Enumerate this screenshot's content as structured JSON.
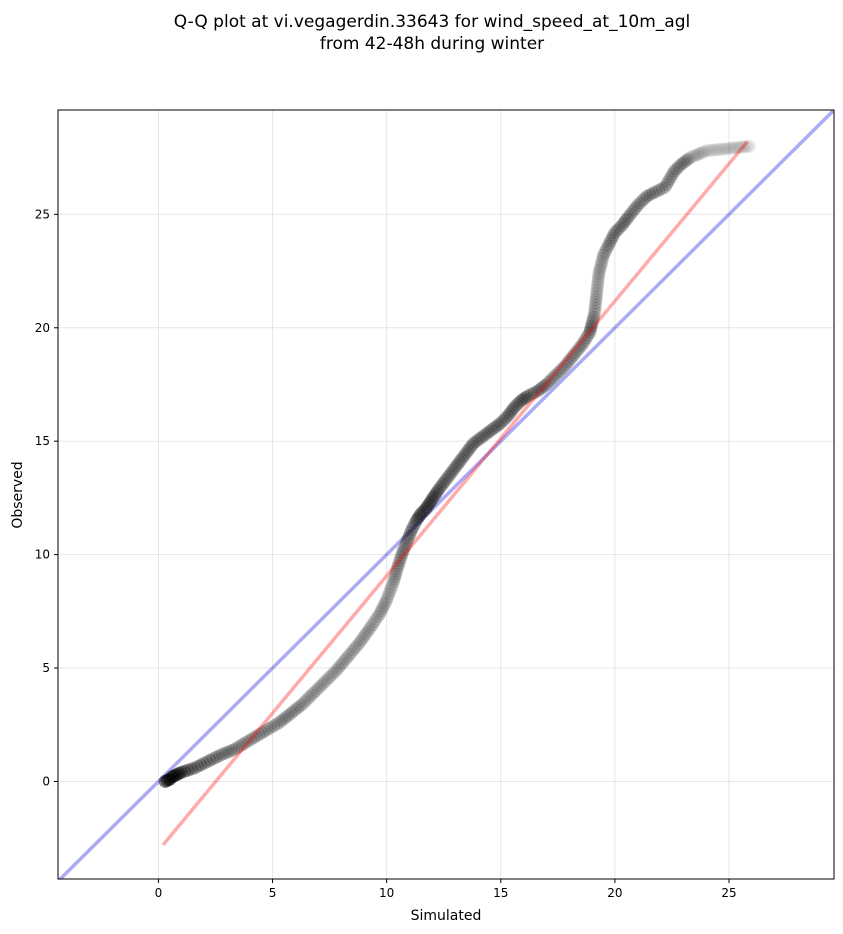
{
  "chart_data": {
    "type": "scatter",
    "title_lines": [
      "Q-Q plot at vi.vegagerdin.33643 for wind_speed_at_10m_agl",
      "from 42-48h during winter"
    ],
    "xlabel": "Simulated",
    "ylabel": "Observed",
    "xlim": [
      -4.4,
      29.6
    ],
    "ylim": [
      -4.3,
      29.6
    ],
    "xticks": [
      0,
      5,
      10,
      15,
      20,
      25
    ],
    "yticks": [
      0,
      5,
      10,
      15,
      20,
      25
    ],
    "grid": true,
    "point_color": "#000000",
    "identity_line": {
      "color": "#0000e0",
      "opacity": 0.33,
      "x": [
        -4.4,
        29.6
      ],
      "y": [
        -4.4,
        29.6
      ]
    },
    "fit_line": {
      "color": "#ff0000",
      "opacity": 0.33,
      "x": [
        0.2,
        25.8
      ],
      "y": [
        -2.8,
        28.2
      ]
    },
    "quantiles": {
      "x": [
        0.3,
        0.5,
        0.6,
        0.8,
        1.0,
        1.3,
        1.6,
        2.0,
        2.4,
        2.8,
        3.3,
        3.8,
        4.3,
        4.8,
        5.3,
        5.8,
        6.3,
        6.8,
        7.3,
        7.8,
        8.3,
        8.8,
        9.3,
        9.7,
        10.0,
        10.3,
        10.5,
        10.7,
        10.9,
        11.1,
        11.3,
        11.5,
        11.7,
        11.9,
        12.1,
        12.3,
        12.6,
        12.9,
        13.2,
        13.5,
        13.8,
        14.2,
        14.6,
        15.0,
        15.3,
        15.6,
        15.9,
        16.2,
        16.6,
        17.0,
        17.4,
        17.8,
        18.2,
        18.6,
        18.9,
        19.0,
        19.1,
        19.2,
        19.3,
        19.5,
        19.7,
        20.0,
        20.3,
        20.6,
        21.0,
        21.4,
        21.8,
        22.2,
        22.6,
        22.9,
        23.3,
        24.0,
        25.9
      ],
      "y": [
        0.0,
        0.1,
        0.2,
        0.3,
        0.4,
        0.5,
        0.6,
        0.8,
        1.0,
        1.2,
        1.4,
        1.7,
        2.0,
        2.3,
        2.6,
        3.0,
        3.4,
        3.9,
        4.4,
        4.9,
        5.5,
        6.1,
        6.8,
        7.4,
        8.0,
        8.8,
        9.5,
        10.1,
        10.6,
        11.1,
        11.5,
        11.8,
        12.0,
        12.3,
        12.6,
        12.9,
        13.3,
        13.7,
        14.1,
        14.5,
        14.9,
        15.2,
        15.5,
        15.8,
        16.1,
        16.5,
        16.8,
        17.0,
        17.2,
        17.5,
        17.9,
        18.3,
        18.8,
        19.3,
        19.8,
        20.2,
        20.6,
        21.5,
        22.4,
        23.2,
        23.6,
        24.2,
        24.5,
        24.9,
        25.4,
        25.8,
        26.0,
        26.2,
        26.9,
        27.2,
        27.5,
        27.8,
        28.0
      ]
    }
  }
}
